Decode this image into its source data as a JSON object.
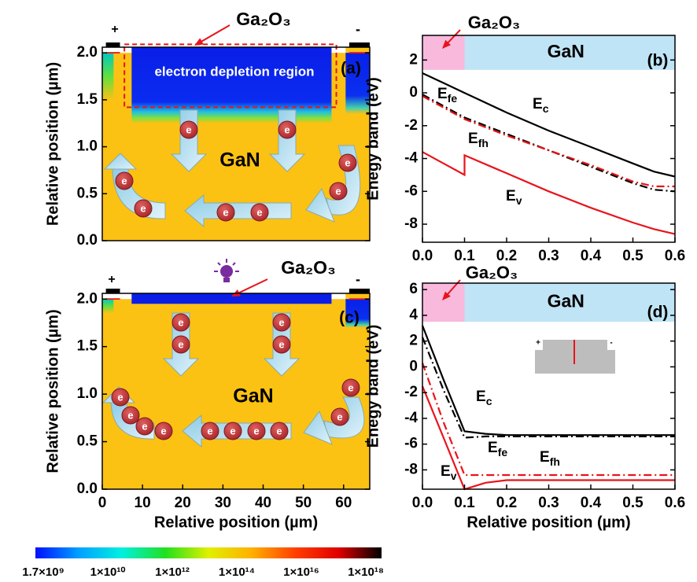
{
  "chart_data": [
    {
      "type": "map",
      "panel": "(a)",
      "ylabel": "Relative position (µm)",
      "xlim": [
        0,
        66.5
      ],
      "ylim": [
        0,
        2.06
      ],
      "yticks": [
        {
          "value": 0,
          "label": "0.0"
        },
        {
          "value": 0.5,
          "label": "0.5"
        },
        {
          "value": 1,
          "label": "1.0"
        },
        {
          "value": 1.5,
          "label": "1.5"
        },
        {
          "value": 2,
          "label": "2.0"
        }
      ],
      "annotations": {
        "plus": "+",
        "minus": "-",
        "oxide": "Ga₂O₃",
        "region": "electron depletion region",
        "gan": "GaN",
        "electron": "e"
      }
    },
    {
      "type": "line",
      "panel": "(b)",
      "ylabel": "Enegy band (eV)",
      "xlim": [
        0,
        0.6
      ],
      "ylim": [
        -9.1,
        3.5
      ],
      "xticks": [
        {
          "value": 0,
          "label": "0.0"
        },
        {
          "value": 0.1,
          "label": "0.1"
        },
        {
          "value": 0.2,
          "label": "0.2"
        },
        {
          "value": 0.3,
          "label": "0.3"
        },
        {
          "value": 0.4,
          "label": "0.4"
        },
        {
          "value": 0.5,
          "label": "0.5"
        },
        {
          "value": 0.6,
          "label": "0.6"
        }
      ],
      "yticks": [
        -8,
        -6,
        -4,
        -2,
        0,
        2
      ],
      "band_ylim": [
        1.4,
        3.5
      ],
      "regions": [
        {
          "name": "Ga₂O₃",
          "color": "#f8b9dc",
          "xlim": [
            0,
            0.1
          ]
        },
        {
          "name": "GaN",
          "color": "#bfe4f6",
          "xlim": [
            0.1,
            0.6
          ]
        }
      ],
      "x": [
        0,
        0.05,
        0.1,
        0.1,
        0.2,
        0.3,
        0.4,
        0.5,
        0.55,
        0.6
      ],
      "series": [
        {
          "label_main": "E",
          "label_sub": "c",
          "color": "#000000",
          "dash": "solid",
          "values": [
            1.2,
            0.6,
            0.0,
            0.0,
            -1.2,
            -2.3,
            -3.3,
            -4.3,
            -4.8,
            -5.1
          ]
        },
        {
          "label_main": "E",
          "label_sub": "fe",
          "color": "#000000",
          "dash": "dashdot",
          "values": [
            -0.1,
            -0.8,
            -1.5,
            -1.5,
            -2.5,
            -3.5,
            -4.5,
            -5.5,
            -5.9,
            -6.0
          ]
        },
        {
          "label_main": "E",
          "label_sub": "fh",
          "color": "#e8141b",
          "dash": "dashdot",
          "values": [
            -0.2,
            -0.9,
            -1.6,
            -1.6,
            -2.6,
            -3.5,
            -4.4,
            -5.4,
            -5.7,
            -5.7
          ]
        },
        {
          "label_main": "E",
          "label_sub": "v",
          "color": "#e8141b",
          "dash": "solid",
          "values": [
            -3.6,
            -4.3,
            -5.0,
            -3.8,
            -4.9,
            -6.0,
            -7.0,
            -7.9,
            -8.3,
            -8.6
          ]
        }
      ]
    },
    {
      "type": "map",
      "panel": "(c)",
      "ylabel": "Relative position (µm)",
      "xlabel": "Relative position (µm)",
      "xlim": [
        0,
        66.5
      ],
      "ylim": [
        0,
        2.06
      ],
      "xticks": [
        0,
        10,
        20,
        30,
        40,
        50,
        60
      ],
      "yticks": [
        {
          "value": 0,
          "label": "0.0"
        },
        {
          "value": 0.5,
          "label": "0.5"
        },
        {
          "value": 1,
          "label": "1.0"
        },
        {
          "value": 1.5,
          "label": "1.5"
        },
        {
          "value": 2,
          "label": "2.0"
        }
      ],
      "annotations": {
        "plus": "+",
        "minus": "-",
        "oxide": "Ga₂O₃",
        "gan": "GaN",
        "electron": "e"
      }
    },
    {
      "type": "line",
      "panel": "(d)",
      "ylabel": "Enegy band (eV)",
      "xlabel": "Relative position (µm)",
      "xlim": [
        0,
        0.6
      ],
      "ylim": [
        -9.5,
        6.5
      ],
      "xticks": [
        {
          "value": 0,
          "label": "0.0"
        },
        {
          "value": 0.1,
          "label": "0.1"
        },
        {
          "value": 0.2,
          "label": "0.2"
        },
        {
          "value": 0.3,
          "label": "0.3"
        },
        {
          "value": 0.4,
          "label": "0.4"
        },
        {
          "value": 0.5,
          "label": "0.5"
        },
        {
          "value": 0.6,
          "label": "0.6"
        }
      ],
      "yticks": [
        -8,
        -6,
        -4,
        -2,
        0,
        2,
        4,
        6
      ],
      "band_ylim": [
        3.5,
        6.5
      ],
      "regions": [
        {
          "name": "Ga₂O₃",
          "color": "#f8b9dc",
          "xlim": [
            0,
            0.1
          ]
        },
        {
          "name": "GaN",
          "color": "#bfe4f6",
          "xlim": [
            0.1,
            0.6
          ]
        }
      ],
      "inset": {
        "plus": "+",
        "minus": "-"
      },
      "x": [
        0,
        0.05,
        0.1,
        0.1,
        0.15,
        0.2,
        0.3,
        0.4,
        0.5,
        0.6
      ],
      "series": [
        {
          "label_main": "E",
          "label_sub": "c",
          "color": "#000000",
          "dash": "solid",
          "values": [
            3.2,
            -1.0,
            -5.0,
            -5.0,
            -5.2,
            -5.3,
            -5.3,
            -5.3,
            -5.3,
            -5.3
          ]
        },
        {
          "label_main": "E",
          "label_sub": "fe",
          "color": "#000000",
          "dash": "dashdot",
          "values": [
            2.3,
            -1.8,
            -5.5,
            -5.5,
            -5.4,
            -5.4,
            -5.4,
            -5.4,
            -5.4,
            -5.4
          ]
        },
        {
          "label_main": "E",
          "label_sub": "fh",
          "color": "#e8141b",
          "dash": "dashdot",
          "values": [
            0.3,
            -4.3,
            -8.4,
            -8.4,
            -8.4,
            -8.4,
            -8.4,
            -8.4,
            -8.4,
            -8.4
          ]
        },
        {
          "label_main": "E",
          "label_sub": "v",
          "color": "#e8141b",
          "dash": "solid",
          "values": [
            -1.5,
            -5.5,
            -9.5,
            -9.5,
            -9.0,
            -8.8,
            -8.8,
            -8.8,
            -8.8,
            -8.8
          ]
        }
      ]
    }
  ],
  "colorbar": {
    "colors": [
      "#0010ff",
      "#00a0ff",
      "#00f0e0",
      "#20e020",
      "#e0f000",
      "#ffb000",
      "#ff4000",
      "#e00000",
      "#000000"
    ],
    "ticks": [
      {
        "value": 1700000000,
        "label": "1.7×10⁹"
      },
      {
        "value": 10000000000,
        "label": "1×10¹⁰"
      },
      {
        "value": 1000000000000,
        "label": "1×10¹²"
      },
      {
        "value": 100000000000000,
        "label": "1×10¹⁴"
      },
      {
        "value": 10000000000000000,
        "label": "1×10¹⁶"
      },
      {
        "value": 1000000000000000000,
        "label": "1×10¹⁸"
      }
    ]
  }
}
